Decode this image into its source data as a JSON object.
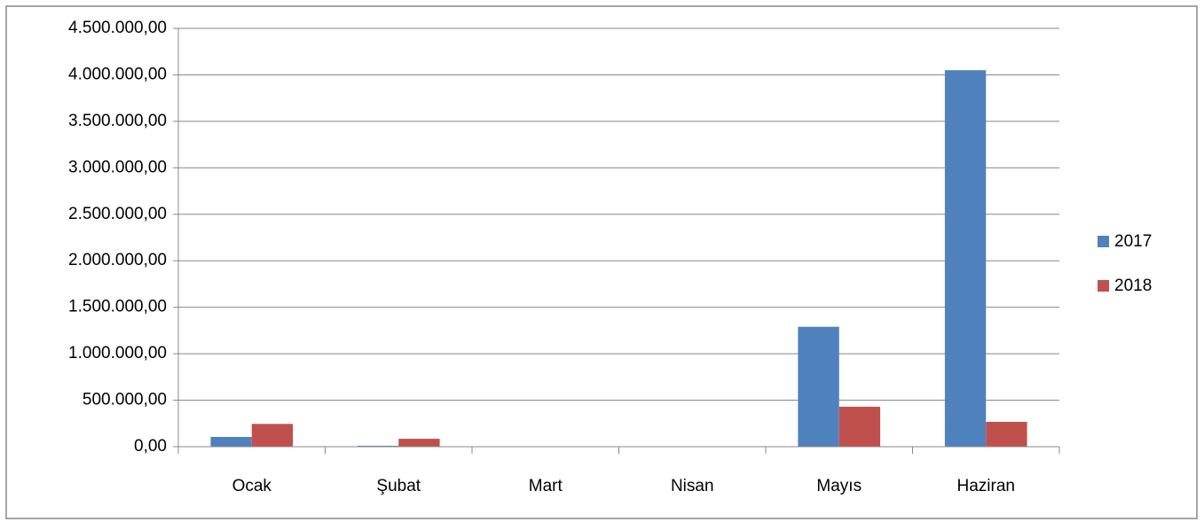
{
  "chart_data": {
    "type": "bar",
    "categories": [
      "Ocak",
      "Şubat",
      "Mart",
      "Nisan",
      "Mayıs",
      "Haziran"
    ],
    "series": [
      {
        "name": "2017",
        "color": "#4f81bd",
        "values": [
          105000,
          10000,
          0,
          3000,
          1290000,
          4050000
        ]
      },
      {
        "name": "2018",
        "color": "#c0504d",
        "values": [
          245000,
          85000,
          0,
          0,
          430000,
          267000
        ]
      }
    ],
    "ylim": [
      0,
      4500000
    ],
    "yticks": [
      {
        "value": 0,
        "label": "0,00"
      },
      {
        "value": 500000,
        "label": "500.000,00"
      },
      {
        "value": 1000000,
        "label": "1.000.000,00"
      },
      {
        "value": 1500000,
        "label": "1.500.000,00"
      },
      {
        "value": 2000000,
        "label": "2.000.000,00"
      },
      {
        "value": 2500000,
        "label": "2.500.000,00"
      },
      {
        "value": 3000000,
        "label": "3.000.000,00"
      },
      {
        "value": 3500000,
        "label": "3.500.000,00"
      },
      {
        "value": 4000000,
        "label": "4.000.000,00"
      },
      {
        "value": 4500000,
        "label": "4.500.000,00"
      }
    ],
    "grid": true,
    "legend": "right"
  }
}
